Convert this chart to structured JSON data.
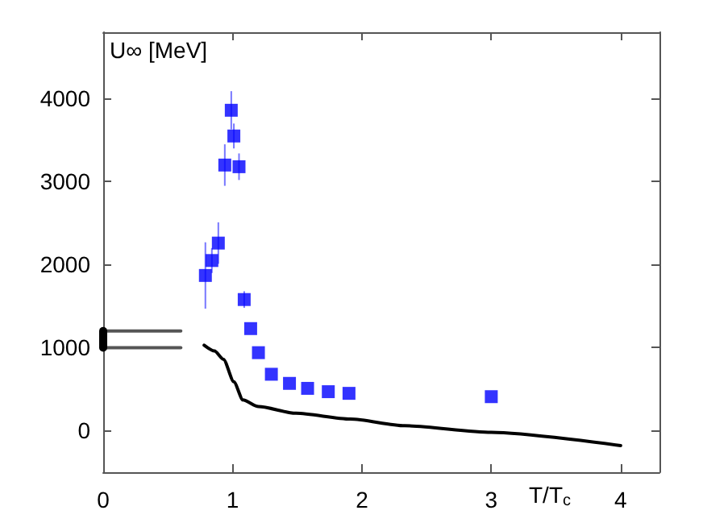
{
  "chart_data": {
    "type": "scatter",
    "xlabel": "T/T$_{c}$",
    "ylabel": "U∞ [MeV]",
    "xlim": [
      0,
      4.3
    ],
    "ylim": [
      -500,
      4800
    ],
    "xticks": [
      0,
      1,
      2,
      3,
      4
    ],
    "yticks": [
      0,
      1000,
      2000,
      3000,
      4000
    ],
    "grid": false,
    "marker": "square",
    "series": [
      {
        "color": "#0000ff",
        "x": [
          0.79,
          0.84,
          0.89,
          0.94,
          0.99,
          1.01,
          1.05,
          1.09,
          1.14,
          1.2,
          1.3,
          1.44,
          1.58,
          1.74,
          1.9,
          3.0
        ],
        "values": [
          1870,
          2050,
          2260,
          3200,
          3860,
          3550,
          3180,
          1580,
          1230,
          940,
          680,
          570,
          510,
          470,
          450,
          410
        ],
        "errors": [
          400,
          150,
          250,
          250,
          230,
          150,
          160,
          100,
          null,
          null,
          null,
          null,
          null,
          null,
          null,
          null
        ]
      },
      {
        "type": "line",
        "color": "#000000",
        "marker": "none",
        "x": [
          0.78,
          0.86,
          0.93,
          1.01,
          1.08,
          1.2,
          1.49,
          1.91,
          2.33,
          3.0,
          4.0
        ],
        "values": [
          1030,
          960,
          860,
          590,
          370,
          290,
          210,
          140,
          60,
          -20,
          -180
        ]
      },
      {
        "type": "line",
        "color": "#555555",
        "marker": "none",
        "x": [
          0,
          0.6
        ],
        "values": [
          1200,
          1200
        ]
      },
      {
        "type": "line",
        "color": "#555555",
        "marker": "none",
        "x": [
          0,
          0.6
        ],
        "values": [
          1000,
          1000
        ]
      },
      {
        "type": "line",
        "color": "#000000",
        "marker": "none",
        "x": [
          0,
          0
        ],
        "values": [
          1000,
          1200
        ]
      }
    ]
  }
}
